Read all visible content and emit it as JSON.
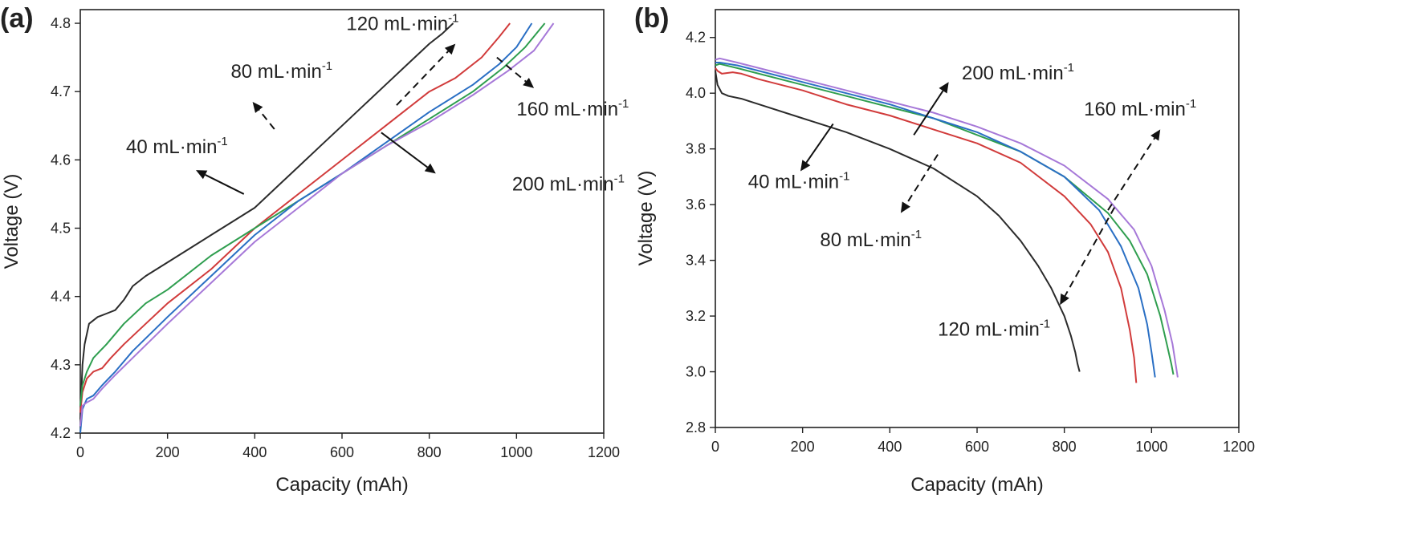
{
  "chart_data": [
    {
      "panel_label": "(a)",
      "type": "line",
      "xlabel": "Capacity (mAh)",
      "ylabel": "Voltage (V)",
      "xlim": [
        0,
        1200
      ],
      "ylim": [
        4.2,
        4.82
      ],
      "xticks": [
        0,
        200,
        400,
        600,
        800,
        1000,
        1200
      ],
      "yticks": [
        4.2,
        4.3,
        4.4,
        4.5,
        4.6,
        4.7,
        4.8
      ],
      "tick_decimals": 1,
      "series": [
        {
          "name": "40 mL·min-1",
          "color": "#2b2b2b",
          "x": [
            0,
            5,
            10,
            20,
            40,
            60,
            80,
            100,
            120,
            150,
            200,
            250,
            300,
            350,
            400,
            450,
            500,
            550,
            600,
            650,
            700,
            750,
            800,
            830,
            855
          ],
          "y": [
            4.22,
            4.3,
            4.33,
            4.36,
            4.37,
            4.375,
            4.38,
            4.395,
            4.415,
            4.43,
            4.45,
            4.47,
            4.49,
            4.51,
            4.53,
            4.56,
            4.59,
            4.62,
            4.65,
            4.68,
            4.71,
            4.74,
            4.77,
            4.785,
            4.8
          ]
        },
        {
          "name": "80 mL·min-1",
          "color": "#d13b3b",
          "x": [
            0,
            5,
            15,
            30,
            50,
            70,
            100,
            150,
            200,
            300,
            400,
            500,
            600,
            700,
            800,
            860,
            920,
            960,
            985
          ],
          "y": [
            4.23,
            4.26,
            4.28,
            4.29,
            4.295,
            4.31,
            4.33,
            4.36,
            4.39,
            4.44,
            4.5,
            4.55,
            4.6,
            4.65,
            4.7,
            4.72,
            4.75,
            4.78,
            4.8
          ]
        },
        {
          "name": "120 mL·min-1",
          "color": "#2f9e4f",
          "x": [
            0,
            5,
            15,
            30,
            60,
            100,
            150,
            200,
            300,
            400,
            500,
            600,
            700,
            800,
            900,
            970,
            1020,
            1065
          ],
          "y": [
            4.24,
            4.27,
            4.29,
            4.31,
            4.33,
            4.36,
            4.39,
            4.41,
            4.46,
            4.5,
            4.54,
            4.58,
            4.62,
            4.66,
            4.7,
            4.735,
            4.765,
            4.8
          ]
        },
        {
          "name": "160 mL·min-1",
          "color": "#2a6fc4",
          "x": [
            0,
            5,
            15,
            30,
            50,
            80,
            120,
            200,
            300,
            400,
            500,
            600,
            700,
            800,
            900,
            960,
            1000,
            1035
          ],
          "y": [
            4.2,
            4.235,
            4.25,
            4.255,
            4.27,
            4.29,
            4.32,
            4.37,
            4.43,
            4.49,
            4.54,
            4.58,
            4.625,
            4.67,
            4.71,
            4.74,
            4.765,
            4.8
          ]
        },
        {
          "name": "200 mL·min-1",
          "color": "#a678d8",
          "x": [
            0,
            5,
            15,
            30,
            50,
            80,
            120,
            200,
            300,
            400,
            500,
            600,
            700,
            800,
            900,
            980,
            1040,
            1085
          ],
          "y": [
            4.21,
            4.24,
            4.245,
            4.25,
            4.265,
            4.285,
            4.31,
            4.36,
            4.42,
            4.48,
            4.53,
            4.58,
            4.62,
            4.655,
            4.695,
            4.73,
            4.76,
            4.8
          ]
        }
      ],
      "annotations": [
        {
          "text": "40 mL·min",
          "sup": "-1",
          "label_at": [
            105,
            4.61
          ],
          "line_from": [
            375,
            4.55
          ],
          "line_to": [
            340,
            4.57
          ],
          "arrow_end": [
            265,
            4.585
          ],
          "dashed": false
        },
        {
          "text": "80 mL·min",
          "sup": "-1",
          "label_at": [
            345,
            4.72
          ],
          "line_from": [
            445,
            4.645
          ],
          "line_to": [
            470,
            4.625
          ],
          "arrow_end": [
            395,
            4.685
          ],
          "dashed": true
        },
        {
          "text": "120 mL·min",
          "sup": "-1",
          "label_at": [
            610,
            4.79
          ],
          "line_from": [
            725,
            4.68
          ],
          "line_to": [
            720,
            4.685
          ],
          "arrow_end": [
            860,
            4.77
          ],
          "dashed": true
        },
        {
          "text": "160 mL·min",
          "sup": "-1",
          "label_at": [
            1000,
            4.665
          ],
          "line_from": [
            955,
            4.75
          ],
          "line_to": [
            955,
            4.75
          ],
          "arrow_end": [
            1040,
            4.705
          ],
          "dashed": true
        },
        {
          "text": "200 mL·min",
          "sup": "-1",
          "label_at": [
            990,
            4.555
          ],
          "line_from": [
            690,
            4.64
          ],
          "line_to": [
            745,
            4.63
          ],
          "arrow_end": [
            815,
            4.58
          ],
          "dashed": false
        }
      ]
    },
    {
      "panel_label": "(b)",
      "type": "line",
      "xlabel": "Capacity (mAh)",
      "ylabel": "Voltage (V)",
      "xlim": [
        0,
        1200
      ],
      "ylim": [
        2.8,
        4.3
      ],
      "xticks": [
        0,
        200,
        400,
        600,
        800,
        1000,
        1200
      ],
      "yticks": [
        2.8,
        3.0,
        3.2,
        3.4,
        3.6,
        3.8,
        4.0,
        4.2
      ],
      "tick_decimals": 1,
      "series": [
        {
          "name": "40 mL·min-1",
          "color": "#2b2b2b",
          "x": [
            0,
            5,
            15,
            30,
            60,
            100,
            200,
            300,
            400,
            500,
            600,
            650,
            700,
            740,
            770,
            800,
            815,
            825,
            830,
            835
          ],
          "y": [
            4.08,
            4.03,
            4.0,
            3.99,
            3.98,
            3.96,
            3.91,
            3.86,
            3.8,
            3.73,
            3.63,
            3.56,
            3.47,
            3.38,
            3.3,
            3.2,
            3.13,
            3.07,
            3.03,
            3.0
          ]
        },
        {
          "name": "80 mL·min-1",
          "color": "#d13b3b",
          "x": [
            0,
            5,
            15,
            40,
            60,
            100,
            200,
            300,
            400,
            500,
            600,
            700,
            800,
            860,
            900,
            930,
            950,
            960,
            965
          ],
          "y": [
            4.09,
            4.08,
            4.07,
            4.075,
            4.07,
            4.05,
            4.01,
            3.96,
            3.92,
            3.87,
            3.82,
            3.75,
            3.63,
            3.53,
            3.43,
            3.3,
            3.15,
            3.05,
            2.96
          ]
        },
        {
          "name": "120 mL·min-1",
          "color": "#2f9e4f",
          "x": [
            0,
            10,
            50,
            100,
            200,
            300,
            400,
            500,
            600,
            700,
            800,
            900,
            950,
            990,
            1020,
            1035,
            1045,
            1050
          ],
          "y": [
            4.1,
            4.105,
            4.09,
            4.07,
            4.03,
            3.99,
            3.95,
            3.91,
            3.85,
            3.79,
            3.7,
            3.57,
            3.47,
            3.35,
            3.2,
            3.1,
            3.03,
            2.99
          ]
        },
        {
          "name": "160 mL·min-1",
          "color": "#2a6fc4",
          "x": [
            0,
            10,
            50,
            100,
            200,
            300,
            400,
            500,
            600,
            700,
            800,
            880,
            930,
            970,
            990,
            1000,
            1008
          ],
          "y": [
            4.11,
            4.11,
            4.1,
            4.08,
            4.04,
            4.0,
            3.96,
            3.91,
            3.86,
            3.79,
            3.7,
            3.58,
            3.45,
            3.3,
            3.17,
            3.07,
            2.98
          ]
        },
        {
          "name": "200 mL·min-1",
          "color": "#a678d8",
          "x": [
            0,
            10,
            50,
            100,
            200,
            300,
            400,
            500,
            600,
            700,
            800,
            900,
            960,
            1000,
            1030,
            1048,
            1055,
            1060
          ],
          "y": [
            4.12,
            4.125,
            4.11,
            4.09,
            4.05,
            4.01,
            3.97,
            3.93,
            3.88,
            3.82,
            3.74,
            3.62,
            3.51,
            3.38,
            3.22,
            3.1,
            3.03,
            2.98
          ]
        }
      ],
      "annotations": [
        {
          "text": "40 mL·min",
          "sup": "-1",
          "label_at": [
            75,
            3.66
          ],
          "line_from": [
            270,
            3.89
          ],
          "line_to": [
            270,
            3.89
          ],
          "arrow_end": [
            195,
            3.72
          ],
          "dashed": false
        },
        {
          "text": "80 mL·min",
          "sup": "-1",
          "label_at": [
            240,
            3.45
          ],
          "line_from": [
            510,
            3.78
          ],
          "line_to": [
            510,
            3.78
          ],
          "arrow_end": [
            425,
            3.57
          ],
          "dashed": true
        },
        {
          "text": "120 mL·min",
          "sup": "-1",
          "label_at": [
            510,
            3.13
          ],
          "line_from": [
            915,
            3.59
          ],
          "line_to": [
            915,
            3.59
          ],
          "arrow_end": [
            790,
            3.24
          ],
          "dashed": true
        },
        {
          "text": "160 mL·min",
          "sup": "-1",
          "label_at": [
            845,
            3.92
          ],
          "line_from": [
            900,
            3.58
          ],
          "line_to": [
            900,
            3.58
          ],
          "arrow_end": [
            1020,
            3.87
          ],
          "dashed": true
        },
        {
          "text": "200 mL·min",
          "sup": "-1",
          "label_at": [
            565,
            4.05
          ],
          "line_from": [
            455,
            3.85
          ],
          "line_to": [
            455,
            3.85
          ],
          "arrow_end": [
            535,
            4.04
          ],
          "dashed": false
        }
      ]
    }
  ]
}
